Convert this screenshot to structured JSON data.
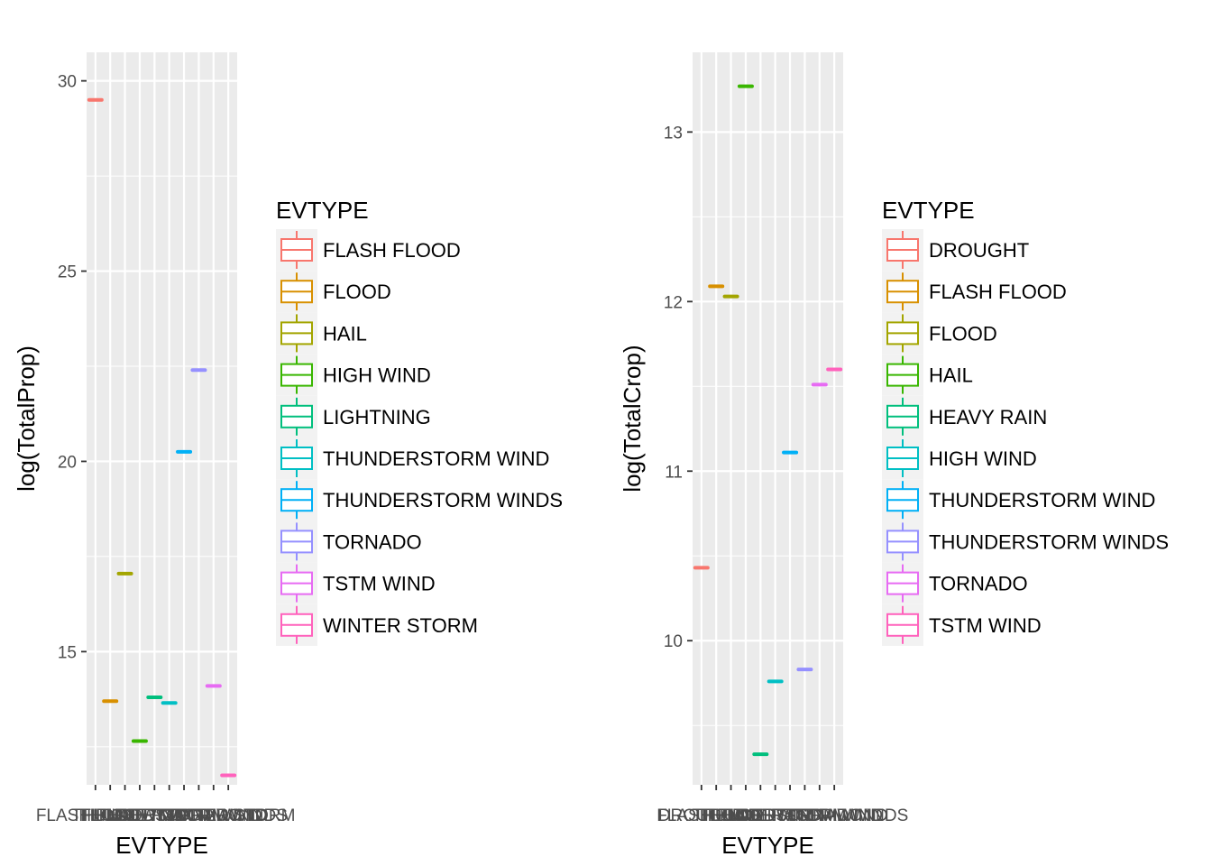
{
  "chart_data": [
    {
      "type": "box",
      "title": "",
      "xlabel": "EVTYPE",
      "ylabel": "log(TotalProp)",
      "ylim": [
        11.5,
        30.75
      ],
      "yticks": [
        15,
        20,
        25,
        30
      ],
      "ytick_labels": [
        "15",
        "20",
        "25",
        "30"
      ],
      "grid": true,
      "legend_title": "EVTYPE",
      "legend_position": "right",
      "categories": [
        "FLASH FLOOD",
        "FLOOD",
        "HAIL",
        "HIGH WIND",
        "LIGHTNING",
        "THUNDERSTORM WIND",
        "THUNDERSTORM WINDS",
        "TORNADO",
        "TSTM WIND",
        "WINTER STORM"
      ],
      "values": [
        29.5,
        13.7,
        17.05,
        12.65,
        13.8,
        13.65,
        20.25,
        22.4,
        14.1,
        11.75
      ],
      "colors": [
        "#F8766D",
        "#D89000",
        "#A3A500",
        "#39B600",
        "#00BF7D",
        "#00BFC4",
        "#00B0F6",
        "#9590FF",
        "#E76BF3",
        "#FF62BC"
      ]
    },
    {
      "type": "box",
      "title": "",
      "xlabel": "EVTYPE",
      "ylabel": "log(TotalCrop)",
      "ylim": [
        9.15,
        13.47
      ],
      "yticks": [
        10,
        11,
        12,
        13
      ],
      "ytick_labels": [
        "10",
        "11",
        "12",
        "13"
      ],
      "grid": true,
      "legend_title": "EVTYPE",
      "legend_position": "right",
      "categories": [
        "DROUGHT",
        "FLASH FLOOD",
        "FLOOD",
        "HAIL",
        "HEAVY RAIN",
        "HIGH WIND",
        "THUNDERSTORM WIND",
        "THUNDERSTORM WINDS",
        "TORNADO",
        "TSTM WIND"
      ],
      "values": [
        10.43,
        12.09,
        12.03,
        13.27,
        9.33,
        9.76,
        11.11,
        9.83,
        11.51,
        11.6
      ],
      "colors": [
        "#F8766D",
        "#D89000",
        "#A3A500",
        "#39B600",
        "#00BF7D",
        "#00BFC4",
        "#00B0F6",
        "#9590FF",
        "#E76BF3",
        "#FF62BC"
      ]
    }
  ]
}
